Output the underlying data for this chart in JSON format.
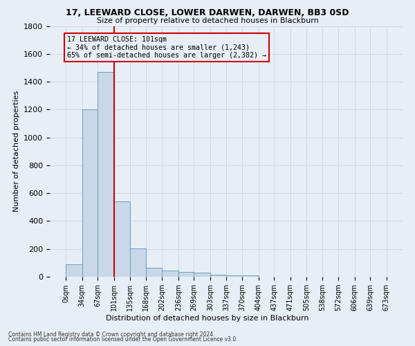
{
  "title1": "17, LEEWARD CLOSE, LOWER DARWEN, DARWEN, BB3 0SD",
  "title2": "Size of property relative to detached houses in Blackburn",
  "xlabel": "Distribution of detached houses by size in Blackburn",
  "ylabel": "Number of detached properties",
  "footer1": "Contains HM Land Registry data © Crown copyright and database right 2024.",
  "footer2": "Contains public sector information licensed under the Open Government Licence v3.0.",
  "annotation_title": "17 LEEWARD CLOSE: 101sqm",
  "annotation_line1": "← 34% of detached houses are smaller (1,243)",
  "annotation_line2": "65% of semi-detached houses are larger (2,382) →",
  "property_size": 101,
  "bin_edges": [
    0,
    34,
    67,
    101,
    135,
    168,
    202,
    236,
    269,
    303,
    337,
    370,
    404,
    437,
    471,
    505,
    538,
    572,
    606,
    639,
    673
  ],
  "bar_heights": [
    90,
    1200,
    1470,
    540,
    205,
    65,
    45,
    35,
    28,
    15,
    8,
    8,
    0,
    0,
    0,
    0,
    0,
    0,
    0,
    0
  ],
  "bar_color": "#c8d8e8",
  "bar_edge_color": "#6a9ec0",
  "grid_color": "#d0d8e8",
  "vline_color": "#cc0000",
  "annotation_box_color": "#cc0000",
  "background_color": "#e8eef5",
  "ylim": [
    0,
    1800
  ],
  "yticks": [
    0,
    200,
    400,
    600,
    800,
    1000,
    1200,
    1400,
    1600,
    1800
  ]
}
